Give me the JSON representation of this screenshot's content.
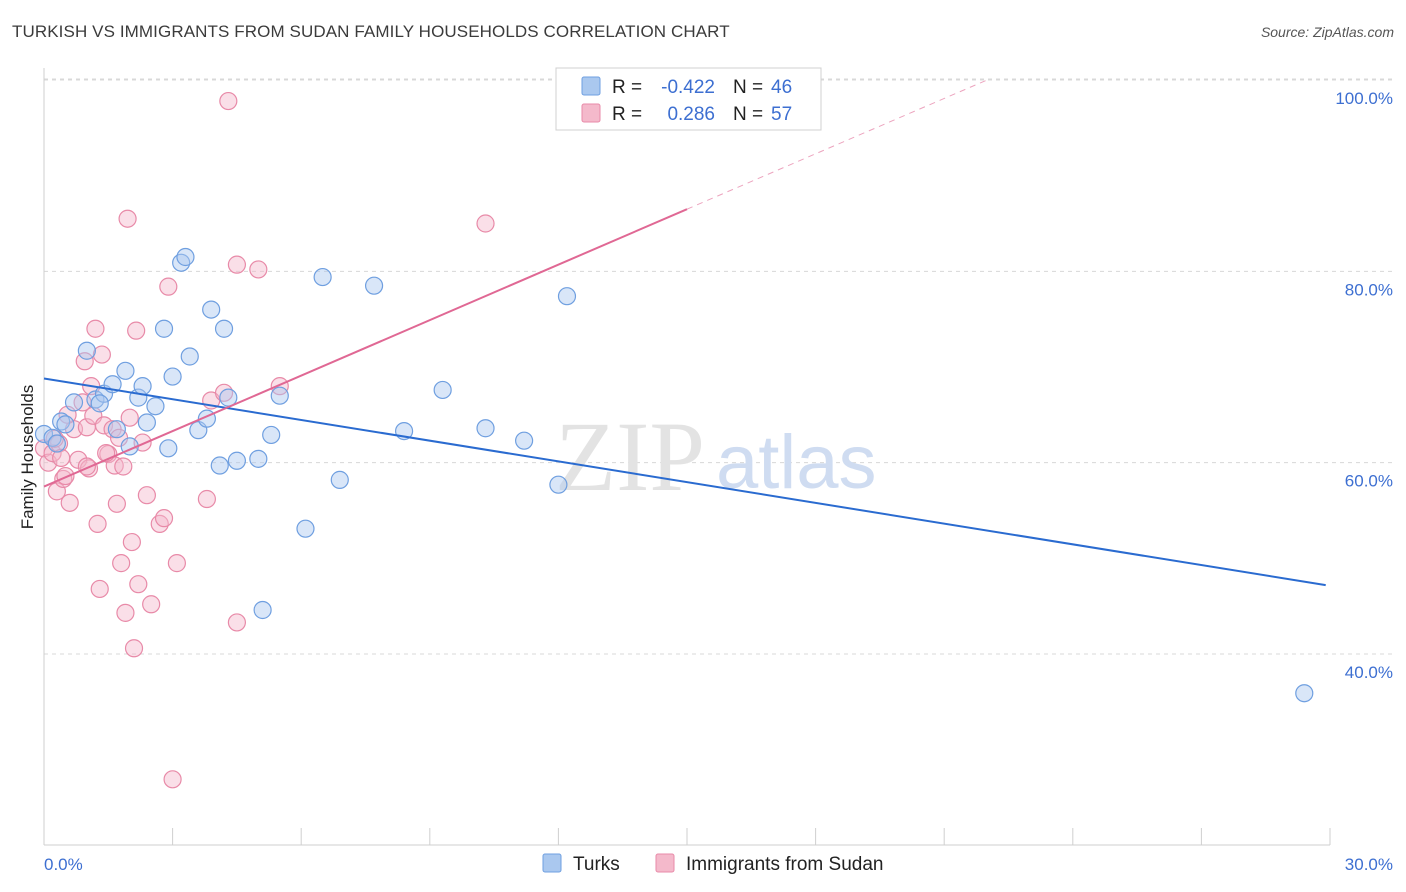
{
  "header": {
    "title": "TURKISH VS IMMIGRANTS FROM SUDAN FAMILY HOUSEHOLDS CORRELATION CHART",
    "source": "Source: ZipAtlas.com"
  },
  "watermark": {
    "zip": "ZIP",
    "atlas": "atlas"
  },
  "colors": {
    "turks": "#6f9fe0",
    "turks_fill": "#aac8ef",
    "turks_line": "#2a6bd0",
    "sudan": "#e88aa8",
    "sudan_fill": "#f4b9cb",
    "sudan_line": "#e06894",
    "grid": "#d8d8d8",
    "accent_text": "#3d6fd1"
  },
  "legend": {
    "rows": [
      {
        "r_label": "R =",
        "r_value": "-0.422",
        "n_label": "N =",
        "n_value": "46"
      },
      {
        "r_label": "R =",
        "r_value": "0.286",
        "n_label": "N =",
        "n_value": "57"
      }
    ]
  },
  "bottom_legend": {
    "turks": "Turks",
    "sudan": "Immigrants from Sudan"
  },
  "chart_data": {
    "type": "scatter",
    "title": "TURKISH VS IMMIGRANTS FROM SUDAN FAMILY HOUSEHOLDS CORRELATION CHART",
    "ylabel": "Family Households",
    "xlabel": "",
    "xlim": [
      0,
      30
    ],
    "ylim": [
      20,
      105
    ],
    "x_tick_labels": [
      "0.0%",
      "30.0%"
    ],
    "y_ticks": [
      40,
      60,
      80,
      100
    ],
    "y_tick_labels": [
      "40.0%",
      "60.0%",
      "80.0%",
      "100.0%"
    ],
    "grid": true,
    "legend_position": "top-center",
    "series": [
      {
        "name": "Turks",
        "R": -0.422,
        "N": 46,
        "trend": {
          "x": [
            0,
            29.9
          ],
          "y": [
            68.8,
            47.2
          ]
        },
        "points": [
          [
            0.0,
            63.0
          ],
          [
            0.2,
            62.6
          ],
          [
            0.3,
            62.0
          ],
          [
            0.4,
            64.3
          ],
          [
            0.5,
            64.0
          ],
          [
            0.7,
            66.3
          ],
          [
            1.0,
            71.7
          ],
          [
            1.2,
            66.6
          ],
          [
            1.4,
            67.2
          ],
          [
            1.6,
            68.2
          ],
          [
            1.7,
            63.5
          ],
          [
            1.9,
            69.6
          ],
          [
            2.0,
            61.7
          ],
          [
            2.2,
            66.8
          ],
          [
            2.3,
            68.0
          ],
          [
            2.4,
            64.2
          ],
          [
            2.6,
            65.9
          ],
          [
            2.8,
            74.0
          ],
          [
            2.9,
            61.5
          ],
          [
            3.0,
            69.0
          ],
          [
            3.2,
            80.9
          ],
          [
            3.3,
            81.5
          ],
          [
            3.4,
            71.1
          ],
          [
            3.6,
            63.4
          ],
          [
            3.8,
            64.6
          ],
          [
            3.9,
            76.0
          ],
          [
            4.1,
            59.7
          ],
          [
            4.2,
            74.0
          ],
          [
            4.3,
            66.8
          ],
          [
            4.5,
            60.2
          ],
          [
            5.0,
            60.4
          ],
          [
            5.1,
            44.6
          ],
          [
            5.3,
            62.9
          ],
          [
            5.5,
            67.0
          ],
          [
            6.1,
            53.1
          ],
          [
            6.5,
            79.4
          ],
          [
            6.9,
            58.2
          ],
          [
            7.7,
            78.5
          ],
          [
            8.4,
            63.3
          ],
          [
            9.3,
            67.6
          ],
          [
            10.3,
            63.6
          ],
          [
            11.2,
            62.3
          ],
          [
            12.0,
            57.7
          ],
          [
            12.2,
            77.4
          ],
          [
            29.4,
            35.9
          ],
          [
            1.3,
            66.2
          ]
        ]
      },
      {
        "name": "Immigrants from Sudan",
        "R": 0.286,
        "N": 57,
        "trend": {
          "x": [
            0,
            15.0
          ],
          "y": [
            57.5,
            86.5
          ]
        },
        "trend_dashed": {
          "x": [
            15.0,
            22.0
          ],
          "y": [
            86.5,
            100.0
          ]
        },
        "points": [
          [
            0.0,
            61.5
          ],
          [
            0.1,
            60.0
          ],
          [
            0.2,
            61.0
          ],
          [
            0.3,
            57.0
          ],
          [
            0.35,
            62.0
          ],
          [
            0.4,
            60.5
          ],
          [
            0.45,
            58.3
          ],
          [
            0.5,
            58.6
          ],
          [
            0.6,
            55.8
          ],
          [
            0.7,
            63.5
          ],
          [
            0.8,
            60.3
          ],
          [
            0.9,
            66.3
          ],
          [
            0.95,
            70.6
          ],
          [
            1.0,
            63.7
          ],
          [
            1.05,
            59.4
          ],
          [
            1.1,
            68.0
          ],
          [
            1.15,
            64.9
          ],
          [
            1.2,
            74.0
          ],
          [
            1.25,
            53.6
          ],
          [
            1.3,
            46.8
          ],
          [
            1.35,
            71.3
          ],
          [
            1.4,
            63.9
          ],
          [
            1.5,
            60.9
          ],
          [
            1.6,
            63.5
          ],
          [
            1.65,
            59.7
          ],
          [
            1.7,
            55.7
          ],
          [
            1.75,
            62.6
          ],
          [
            1.8,
            49.5
          ],
          [
            1.85,
            59.6
          ],
          [
            1.9,
            44.3
          ],
          [
            1.95,
            85.5
          ],
          [
            2.0,
            64.7
          ],
          [
            2.05,
            51.7
          ],
          [
            2.1,
            40.6
          ],
          [
            2.15,
            73.8
          ],
          [
            2.2,
            47.3
          ],
          [
            2.3,
            62.1
          ],
          [
            2.4,
            56.6
          ],
          [
            2.5,
            45.2
          ],
          [
            2.7,
            53.6
          ],
          [
            2.8,
            54.2
          ],
          [
            2.9,
            78.4
          ],
          [
            3.1,
            49.5
          ],
          [
            3.0,
            26.9
          ],
          [
            3.8,
            56.2
          ],
          [
            3.9,
            66.5
          ],
          [
            4.2,
            67.3
          ],
          [
            4.3,
            97.8
          ],
          [
            4.5,
            43.3
          ],
          [
            4.5,
            80.7
          ],
          [
            5.0,
            80.2
          ],
          [
            5.5,
            68.0
          ],
          [
            10.3,
            85.0
          ],
          [
            1.0,
            59.6
          ],
          [
            0.55,
            65.0
          ],
          [
            1.45,
            61.0
          ],
          [
            0.25,
            62.5
          ]
        ]
      }
    ]
  }
}
